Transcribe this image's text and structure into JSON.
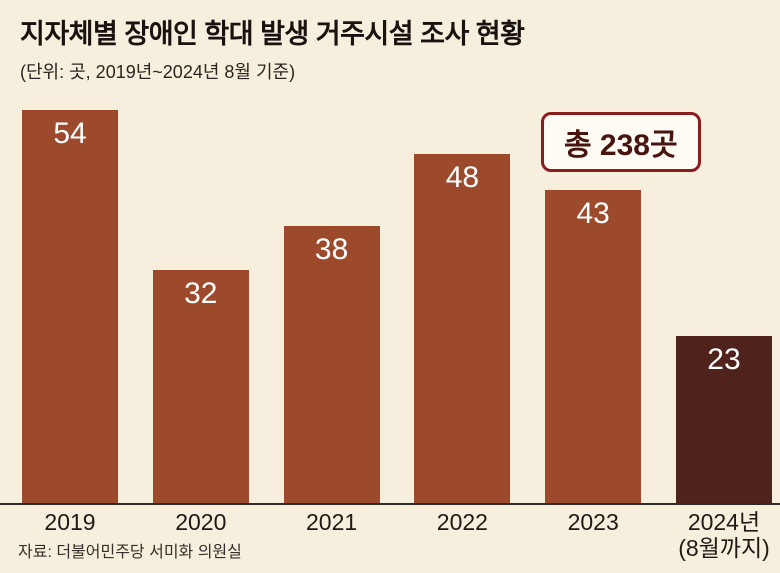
{
  "title": "지자체별 장애인 학대 발생 거주시설 조사 현황",
  "subtitle": "(단위: 곳, 2019년~2024년 8월 기준)",
  "total_badge": "총 238곳",
  "source": "자료: 더불어민주당 서미화 의원실",
  "colors": {
    "background": "#f7efde",
    "bar": "#9d4a2c",
    "bar_highlight_last": "#4f221b",
    "badge_border": "#8c1d1f",
    "badge_text": "#471410",
    "value_label": "#ffffff"
  },
  "chart_data": {
    "type": "bar",
    "title": "지자체별 장애인 학대 발생 거주시설 조사 현황",
    "unit_note": "(단위: 곳, 2019년~2024년 8월 기준)",
    "categories": [
      "2019",
      "2020",
      "2021",
      "2022",
      "2023",
      "2024년\n(8월까지)"
    ],
    "values": [
      54,
      32,
      38,
      48,
      43,
      23
    ],
    "total": 238,
    "total_label": "총 238곳",
    "xlabel": "",
    "ylabel": "곳",
    "ylim": [
      0,
      54
    ],
    "grid": false,
    "legend": false,
    "highlight_last_bar": true,
    "source": "자료: 더불어민주당 서미화 의원실"
  }
}
